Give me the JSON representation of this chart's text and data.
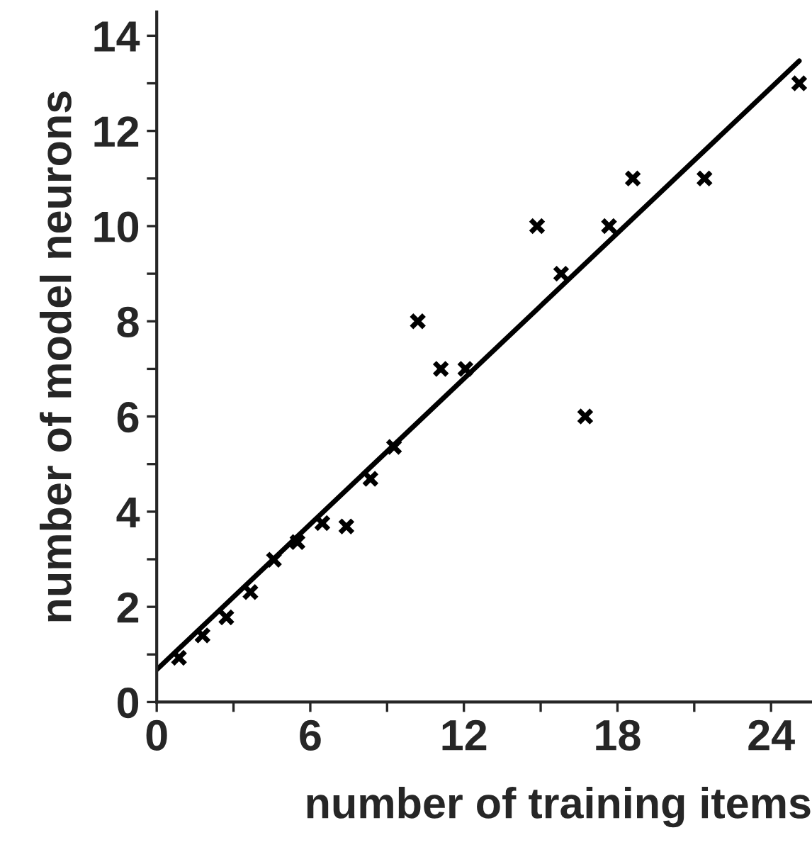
{
  "chart_data": {
    "type": "scatter",
    "xlabel": "number of training items",
    "ylabel": "number of model neurons",
    "series": [
      {
        "color": "#000000",
        "marker": "cross",
        "x": [
          0.87,
          1.79,
          2.72,
          3.66,
          4.58,
          5.5,
          6.47,
          7.41,
          8.35,
          9.27,
          10.2,
          11.1,
          12.06,
          14.86,
          15.8,
          16.74,
          17.67,
          18.6,
          21.4,
          25.1
        ],
        "values": [
          0.93,
          1.4,
          1.78,
          2.31,
          2.99,
          3.36,
          3.76,
          3.69,
          4.69,
          5.36,
          8,
          7,
          7,
          10,
          9,
          6,
          10,
          11,
          11,
          13
        ]
      },
      {
        "type": "line",
        "color": "#000000",
        "marker": "none",
        "line_style": "solid",
        "x": [
          0,
          25.1
        ],
        "values": [
          0.68,
          13.47
        ]
      }
    ],
    "xlim": [
      0,
      25.6
    ],
    "ylim": [
      0,
      14.5
    ],
    "xticks": [
      0,
      {
        "value": 3,
        "label": null
      },
      6,
      {
        "value": 9,
        "label": null
      },
      12,
      {
        "value": 15,
        "label": null
      },
      18,
      {
        "value": 21,
        "label": null
      },
      24
    ],
    "yticks": [
      0,
      {
        "value": 1,
        "label": null
      },
      2,
      {
        "value": 3,
        "label": null
      },
      4,
      {
        "value": 5,
        "label": null
      },
      6,
      {
        "value": 7,
        "label": null
      },
      8,
      {
        "value": 9,
        "label": null
      },
      10,
      {
        "value": 11,
        "label": null
      },
      12,
      {
        "value": 13,
        "label": null
      },
      14
    ],
    "grid": false,
    "legend": false
  }
}
